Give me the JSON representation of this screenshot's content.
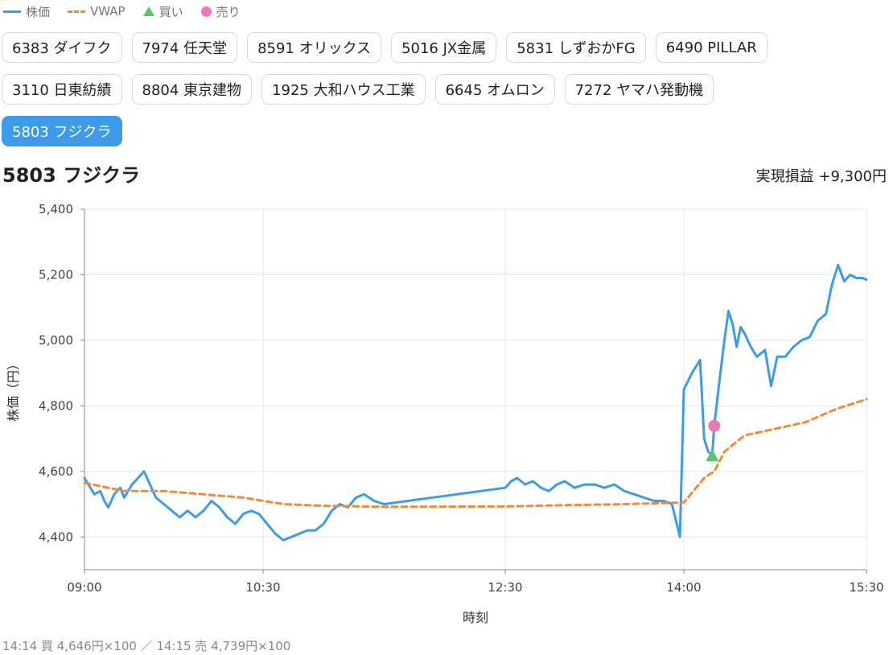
{
  "legend": {
    "price_label": "株価",
    "vwap_label": "VWAP",
    "buy_label": "買い",
    "sell_label": "売り"
  },
  "colors": {
    "price": "#3d9be9",
    "vwap": "#f08a3c",
    "buy": "#5cc36a",
    "sell": "#e87bb0",
    "active_chip": "#3d9be9"
  },
  "stocks": {
    "row1": [
      "6383 ダイフク",
      "7974 任天堂",
      "8591 オリックス",
      "5016 JX金属",
      "5831 しずおかFG",
      "6490 PILLAR"
    ],
    "row2": [
      "3110 日東紡績",
      "8804 東京建物",
      "1925 大和ハウス工業",
      "6645 オムロン",
      "7272 ヤマハ発動機"
    ],
    "row3": [
      "5803 フジクラ"
    ],
    "selected": "5803 フジクラ"
  },
  "chart_title": "5803 フジクラ",
  "pnl_text": "実現損益 +9,300円",
  "footer_text": "14:14 買 4,646円×100 ／ 14:15 売 4,739円×100",
  "chart_data": {
    "type": "line",
    "xlabel": "時刻",
    "ylabel": "株価（円）",
    "x_ticks": [
      "09:00",
      "10:30",
      "12:30",
      "14:00",
      "15:30"
    ],
    "y_ticks": [
      4400,
      4600,
      4800,
      5000,
      5200,
      5400
    ],
    "ylim": [
      4300,
      5400
    ],
    "grid": true,
    "series": [
      {
        "name": "株価",
        "points": [
          [
            "09:00",
            4580
          ],
          [
            "09:02",
            4560
          ],
          [
            "09:05",
            4530
          ],
          [
            "09:08",
            4540
          ],
          [
            "09:10",
            4510
          ],
          [
            "09:12",
            4490
          ],
          [
            "09:15",
            4530
          ],
          [
            "09:18",
            4550
          ],
          [
            "09:20",
            4520
          ],
          [
            "09:24",
            4560
          ],
          [
            "09:27",
            4580
          ],
          [
            "09:30",
            4600
          ],
          [
            "09:33",
            4560
          ],
          [
            "09:36",
            4520
          ],
          [
            "09:40",
            4500
          ],
          [
            "09:44",
            4480
          ],
          [
            "09:48",
            4460
          ],
          [
            "09:52",
            4480
          ],
          [
            "09:56",
            4460
          ],
          [
            "10:00",
            4480
          ],
          [
            "10:04",
            4510
          ],
          [
            "10:08",
            4490
          ],
          [
            "10:12",
            4460
          ],
          [
            "10:16",
            4440
          ],
          [
            "10:20",
            4470
          ],
          [
            "10:24",
            4480
          ],
          [
            "10:28",
            4470
          ],
          [
            "10:32",
            4440
          ],
          [
            "10:36",
            4410
          ],
          [
            "10:40",
            4390
          ],
          [
            "10:44",
            4400
          ],
          [
            "10:48",
            4410
          ],
          [
            "10:52",
            4420
          ],
          [
            "10:56",
            4420
          ],
          [
            "11:00",
            4440
          ],
          [
            "11:04",
            4480
          ],
          [
            "11:08",
            4500
          ],
          [
            "11:12",
            4490
          ],
          [
            "11:16",
            4520
          ],
          [
            "11:20",
            4530
          ],
          [
            "11:25",
            4510
          ],
          [
            "11:30",
            4500
          ],
          [
            "12:30",
            4550
          ],
          [
            "12:33",
            4570
          ],
          [
            "12:36",
            4580
          ],
          [
            "12:40",
            4560
          ],
          [
            "12:44",
            4570
          ],
          [
            "12:48",
            4550
          ],
          [
            "12:52",
            4540
          ],
          [
            "12:56",
            4560
          ],
          [
            "13:00",
            4570
          ],
          [
            "13:05",
            4550
          ],
          [
            "13:10",
            4560
          ],
          [
            "13:15",
            4560
          ],
          [
            "13:20",
            4550
          ],
          [
            "13:25",
            4560
          ],
          [
            "13:30",
            4540
          ],
          [
            "13:35",
            4530
          ],
          [
            "13:40",
            4520
          ],
          [
            "13:45",
            4510
          ],
          [
            "13:50",
            4510
          ],
          [
            "13:54",
            4500
          ],
          [
            "13:58",
            4400
          ],
          [
            "14:00",
            4850
          ],
          [
            "14:04",
            4900
          ],
          [
            "14:08",
            4940
          ],
          [
            "14:10",
            4700
          ],
          [
            "14:12",
            4660
          ],
          [
            "14:14",
            4650
          ],
          [
            "14:15",
            4740
          ],
          [
            "14:18",
            4900
          ],
          [
            "14:20",
            5000
          ],
          [
            "14:22",
            5090
          ],
          [
            "14:24",
            5050
          ],
          [
            "14:26",
            4980
          ],
          [
            "14:28",
            5040
          ],
          [
            "14:30",
            5020
          ],
          [
            "14:33",
            4980
          ],
          [
            "14:36",
            4950
          ],
          [
            "14:40",
            4970
          ],
          [
            "14:43",
            4860
          ],
          [
            "14:46",
            4950
          ],
          [
            "14:50",
            4950
          ],
          [
            "14:54",
            4980
          ],
          [
            "14:58",
            5000
          ],
          [
            "15:02",
            5010
          ],
          [
            "15:06",
            5060
          ],
          [
            "15:10",
            5080
          ],
          [
            "15:13",
            5170
          ],
          [
            "15:16",
            5230
          ],
          [
            "15:19",
            5180
          ],
          [
            "15:22",
            5200
          ],
          [
            "15:25",
            5190
          ],
          [
            "15:28",
            5190
          ],
          [
            "15:30",
            5185
          ]
        ]
      },
      {
        "name": "VWAP",
        "points": [
          [
            "09:00",
            4565
          ],
          [
            "09:20",
            4540
          ],
          [
            "09:40",
            4540
          ],
          [
            "10:00",
            4530
          ],
          [
            "10:20",
            4520
          ],
          [
            "10:40",
            4500
          ],
          [
            "11:00",
            4495
          ],
          [
            "11:30",
            4492
          ],
          [
            "12:30",
            4493
          ],
          [
            "13:00",
            4497
          ],
          [
            "13:30",
            4500
          ],
          [
            "14:00",
            4505
          ],
          [
            "14:06",
            4550
          ],
          [
            "14:10",
            4580
          ],
          [
            "14:15",
            4600
          ],
          [
            "14:20",
            4660
          ],
          [
            "14:30",
            4710
          ],
          [
            "14:45",
            4730
          ],
          [
            "15:00",
            4750
          ],
          [
            "15:15",
            4790
          ],
          [
            "15:30",
            4820
          ]
        ]
      }
    ],
    "trades": [
      {
        "type": "買い",
        "time": "14:14",
        "price": 4646,
        "qty": 100
      },
      {
        "type": "売り",
        "time": "14:15",
        "price": 4739,
        "qty": 100
      }
    ]
  }
}
